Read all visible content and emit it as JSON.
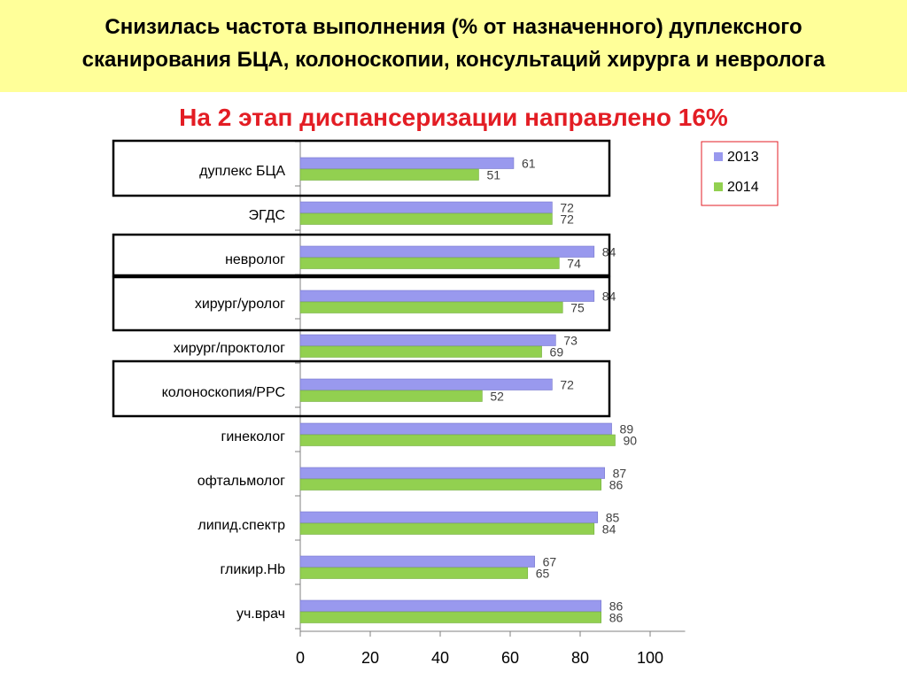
{
  "header": {
    "title_line1": "Снизилась частота выполнения (% от назначенного) дуплексного",
    "title_line2": "сканирования БЦА, колоноскопии, консультаций хирурга и невролога"
  },
  "subtitle": "На 2 этап диспансеризации направлено 16%",
  "colors": {
    "series_2013": "#9999ee",
    "series_2014": "#92d050",
    "header_bg": "#ffff99",
    "subtitle": "#e31d24",
    "legend_border": "#e31d24"
  },
  "chart_data": {
    "type": "bar",
    "orientation": "horizontal",
    "categories": [
      "дуплекс БЦА",
      "ЭГДС",
      "невролог",
      "хирург/уролог",
      "хирург/проктолог",
      "колоноскопия/РРС",
      "гинеколог",
      "офтальмолог",
      "липид.спектр",
      "гликир.Hb",
      "уч.врач"
    ],
    "series": [
      {
        "name": "2013",
        "values": [
          61,
          72,
          84,
          84,
          73,
          72,
          89,
          87,
          85,
          67,
          86
        ]
      },
      {
        "name": "2014",
        "values": [
          51,
          72,
          74,
          75,
          69,
          52,
          90,
          86,
          84,
          65,
          86
        ]
      }
    ],
    "xlim": [
      0,
      110
    ],
    "xticks": [
      "0",
      "20",
      "40",
      "60",
      "80",
      "100"
    ],
    "xtick_values": [
      0,
      20,
      40,
      60,
      80,
      100
    ],
    "highlighted_categories": [
      "дуплекс БЦА",
      "невролог",
      "хирург/уролог",
      "колоноскопия/РРС"
    ],
    "legend_position": "top-right",
    "grid": false
  }
}
